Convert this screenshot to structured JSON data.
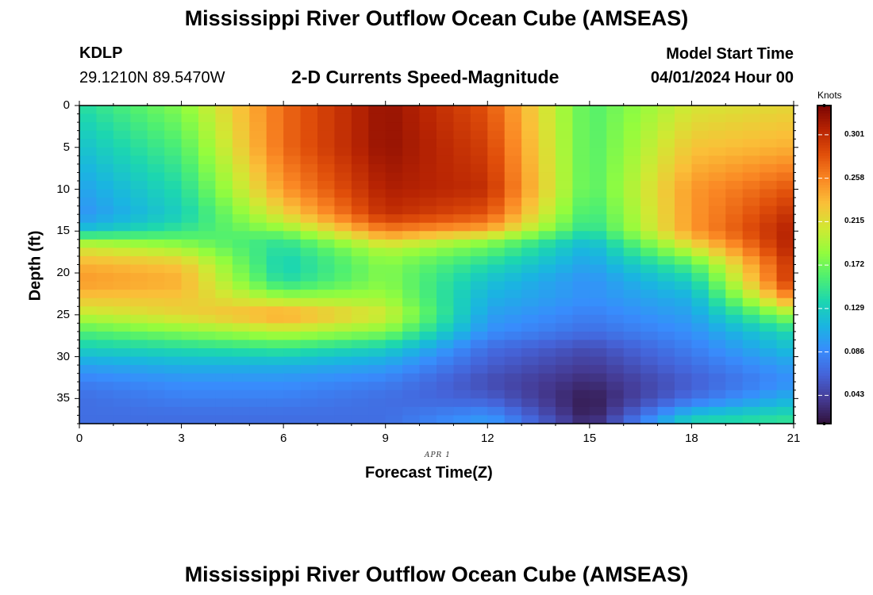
{
  "header": {
    "title": "Mississippi River Outflow Ocean Cube (AMSEAS)",
    "station": "KDLP",
    "location": "29.1210N  89.5470W",
    "subtitle": "2-D Currents Speed-Magnitude",
    "model_start_label": "Model Start Time",
    "model_start_value": "04/01/2024 Hour 00",
    "date_annotation": "APR 1"
  },
  "footer": {
    "title": "Mississippi River Outflow Ocean Cube (AMSEAS)"
  },
  "chart_data": {
    "type": "heatmap",
    "xlabel": "Forecast Time(Z)",
    "ylabel": "Depth (ft)",
    "xlim": [
      0,
      21
    ],
    "ylim": [
      0,
      38
    ],
    "y_inverted": true,
    "x_ticks": [
      "0",
      "3",
      "6",
      "9",
      "12",
      "15",
      "18",
      "21"
    ],
    "y_ticks": [
      "0",
      "5",
      "10",
      "15",
      "20",
      "25",
      "30",
      "35"
    ],
    "colorbar": {
      "unit": "Knots",
      "min": 0.015,
      "max": 0.33,
      "ticks": [
        "0.043",
        "0.086",
        "0.129",
        "0.172",
        "0.215",
        "0.258",
        "0.301"
      ],
      "colormap": "turbo"
    },
    "x": [
      0,
      3,
      6,
      9,
      12,
      15,
      18,
      21
    ],
    "depths": [
      0,
      5,
      10,
      13,
      15,
      16,
      17,
      19,
      21,
      23,
      25,
      27,
      29,
      31,
      33,
      35,
      37,
      38
    ],
    "values": [
      [
        0.14,
        0.18,
        0.27,
        0.32,
        0.28,
        0.16,
        0.21,
        0.22
      ],
      [
        0.12,
        0.16,
        0.27,
        0.32,
        0.29,
        0.16,
        0.23,
        0.24
      ],
      [
        0.1,
        0.14,
        0.25,
        0.31,
        0.3,
        0.16,
        0.25,
        0.28
      ],
      [
        0.09,
        0.13,
        0.22,
        0.3,
        0.28,
        0.15,
        0.25,
        0.3
      ],
      [
        0.12,
        0.15,
        0.18,
        0.26,
        0.24,
        0.14,
        0.25,
        0.31
      ],
      [
        0.18,
        0.17,
        0.15,
        0.23,
        0.19,
        0.12,
        0.23,
        0.31
      ],
      [
        0.21,
        0.19,
        0.14,
        0.2,
        0.17,
        0.11,
        0.21,
        0.31
      ],
      [
        0.24,
        0.23,
        0.13,
        0.18,
        0.14,
        0.1,
        0.16,
        0.3
      ],
      [
        0.25,
        0.24,
        0.14,
        0.18,
        0.12,
        0.09,
        0.13,
        0.3
      ],
      [
        0.23,
        0.23,
        0.19,
        0.19,
        0.11,
        0.09,
        0.11,
        0.26
      ],
      [
        0.2,
        0.22,
        0.25,
        0.21,
        0.1,
        0.08,
        0.1,
        0.19
      ],
      [
        0.16,
        0.18,
        0.2,
        0.18,
        0.09,
        0.07,
        0.09,
        0.14
      ],
      [
        0.13,
        0.14,
        0.15,
        0.13,
        0.07,
        0.05,
        0.08,
        0.12
      ],
      [
        0.1,
        0.11,
        0.11,
        0.1,
        0.06,
        0.04,
        0.07,
        0.1
      ],
      [
        0.08,
        0.09,
        0.09,
        0.08,
        0.05,
        0.03,
        0.06,
        0.09
      ],
      [
        0.07,
        0.08,
        0.08,
        0.07,
        0.06,
        0.02,
        0.07,
        0.11
      ],
      [
        0.07,
        0.07,
        0.07,
        0.07,
        0.09,
        0.02,
        0.12,
        0.14
      ],
      [
        0.07,
        0.07,
        0.07,
        0.07,
        0.1,
        0.03,
        0.14,
        0.15
      ]
    ]
  }
}
